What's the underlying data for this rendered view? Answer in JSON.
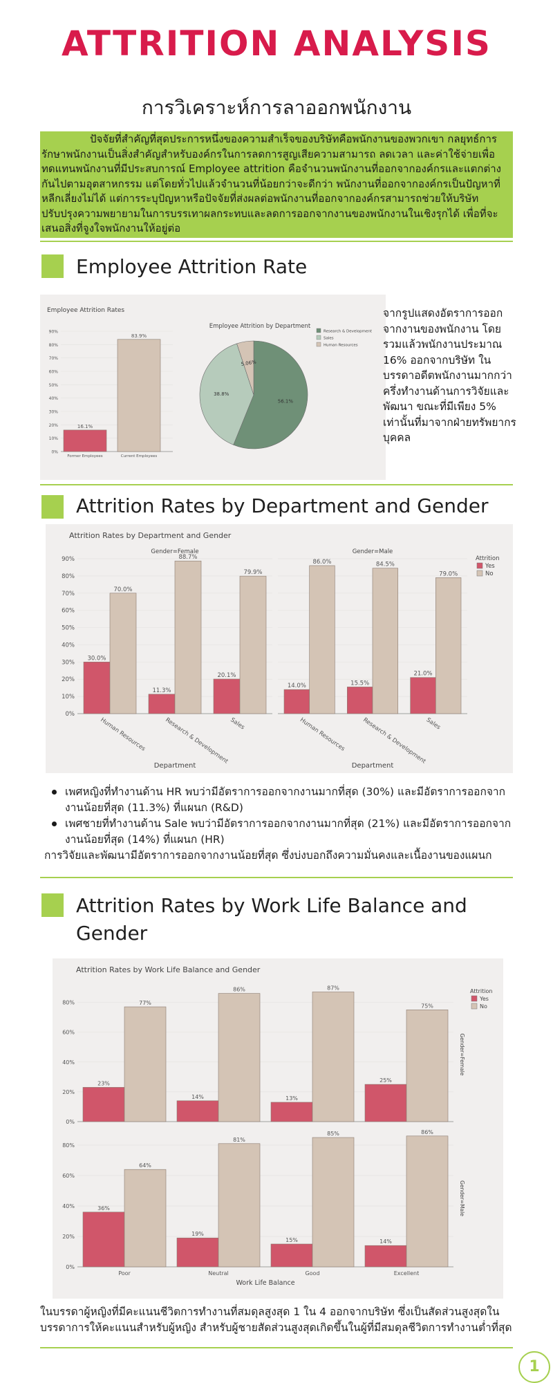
{
  "page": {
    "title": "ATTRITION ANALYSIS",
    "subtitle": "การวิเคราะห์การลาออกพนักงาน",
    "intro": "ปัจจัยที่สำคัญที่สุดประการหนึ่งของความสำเร็จของบริษัทคือพนักงานของพวกเขา กลยุทธ์การรักษาพนักงานเป็นสิ่งสำคัญสำหรับองค์กรในการลดการสูญเสียความสามารถ ลดเวลา และค่าใช้จ่ายเพื่อทดแทนพนักงานที่มีประสบการณ์ Employee attrition คือจำนวนพนักงานที่ออกจากองค์กรและแตกต่างกันไปตามอุตสาหกรรม แต่โดยทั่วไปแล้วจำนวนที่น้อยกว่าจะดีกว่า พนักงานที่ออกจากองค์กรเป็นปัญหาที่หลีกเลี่ยงไม่ได้ แต่การระบุปัญหาหรือปัจจัยที่ส่งผลต่อพนักงานที่ออกจากองค์กรสามารถช่วยให้บริษัทปรับปรุงความพยายามในการบรรเทาผลกระทบและลดการออกจากงานของพนักงานในเชิงรุกได้ เพื่อที่จะเสนอสิ่งที่จูงใจพนักงานให้อยู่ต่อ",
    "page_number": "1"
  },
  "sections": {
    "s1": {
      "heading": "Employee Attrition Rate",
      "side_text": "จากรูปแสดงอัตราการออกจากงานของพนักงาน โดยรวมแล้วพนักงานประมาณ 16% ออกจากบริษัท ในบรรดาอดีตพนักงานมากกว่าครึ่งทำงานด้านการวิจัยและพัฒนา ขณะที่มีเพียง 5% เท่านั้นที่มาจากฝ่ายทรัพยากรบุคคล"
    },
    "s2": {
      "heading": "Attrition Rates by Department and Gender",
      "bullets": [
        "เพศหญิงที่ทำงานด้าน HR พบว่ามีอัตราการออกจากงานมากที่สุด (30%) และมีอัตราการออกจากงานน้อยที่สุด (11.3%) ที่แผนก (R&D)",
        "เพศชายที่ทำงานด้าน Sale พบว่ามีอัตราการออกจากงานมากที่สุด (21%) และมีอัตราการออกจากงานน้อยที่สุด (14%) ที่แผนก (HR)"
      ],
      "summary": "การวิจัยและพัฒนามีอัตราการออกจากงานน้อยที่สุด ซึ่งบ่งบอกถึงความมั่นคงและเนื้องานของแผนก"
    },
    "s3": {
      "heading": "Attrition Rates by Work Life Balance and Gender",
      "text": "ในบรรดาผู้หญิงที่มีคะแนนชีวิตการทำงานที่สมดุลสูงสุด 1 ใน 4 ออกจากบริษัท ซึ่งเป็นสัดส่วนสูงสุดในบรรดาการให้คะแนนสำหรับผู้หญิง สำหรับผู้ชายสัดส่วนสูงสุดเกิดขึ้นในผู้ที่มีสมดุลชีวิตการทำงานต่ำที่สุด"
    }
  },
  "colors": {
    "accent": "#a6d04f",
    "title": "#d81b4b",
    "yes": "#d0566a",
    "no": "#d4c4b5",
    "pie_rd": "#6f9077",
    "pie_sales": "#b6cbbb",
    "pie_hr": "#d4c4b5"
  },
  "chart_data": [
    {
      "type": "bar",
      "title": "Employee Attrition Rates",
      "categories": [
        "Former Employees",
        "Current Employees"
      ],
      "values": [
        16.1,
        83.9
      ],
      "labels": [
        "16.1%",
        "83.9%"
      ],
      "yticks": [
        "0%",
        "10%",
        "20%",
        "30%",
        "40%",
        "50%",
        "60%",
        "70%",
        "80%",
        "90%"
      ],
      "ylim": [
        0,
        90
      ]
    },
    {
      "type": "pie",
      "title": "Employee Attrition by Department",
      "slices": [
        {
          "name": "Research & Development",
          "value": 56.1,
          "label": "56.1%"
        },
        {
          "name": "Sales",
          "value": 38.8,
          "label": "38.8%"
        },
        {
          "name": "Human Resources",
          "value": 5.06,
          "label": "5.06%"
        }
      ],
      "legend": [
        "Research & Development",
        "Sales",
        "Human Resources"
      ]
    },
    {
      "type": "bar",
      "title": "Attrition Rates by Department and Gender",
      "facets": [
        "Gender=Female",
        "Gender=Male"
      ],
      "categories": [
        "Human Resources",
        "Research & Development",
        "Sales"
      ],
      "xlabel": "Department",
      "legend_title": "Attrition",
      "series": [
        {
          "name": "Yes",
          "female": [
            30.0,
            11.3,
            20.1
          ],
          "male": [
            14.0,
            15.5,
            21.0
          ]
        },
        {
          "name": "No",
          "female": [
            70.0,
            88.7,
            79.9
          ],
          "male": [
            86.0,
            84.5,
            79.0
          ]
        }
      ],
      "labels": {
        "female_yes": [
          "30.0%",
          "11.3%",
          "20.1%"
        ],
        "female_no": [
          "70.0%",
          "88.7%",
          "79.9%"
        ],
        "male_yes": [
          "14.0%",
          "15.5%",
          "21.0%"
        ],
        "male_no": [
          "86.0%",
          "84.5%",
          "79.0%"
        ]
      },
      "yticks": [
        "0%",
        "10%",
        "20%",
        "30%",
        "40%",
        "50%",
        "60%",
        "70%",
        "80%",
        "90%"
      ],
      "ylim": [
        0,
        90
      ]
    },
    {
      "type": "bar",
      "title": "Attrition Rates by Work Life Balance and Gender",
      "facets": [
        "Gender=Female",
        "Gender=Male"
      ],
      "categories": [
        "Poor",
        "Neutral",
        "Good",
        "Excellent"
      ],
      "xlabel": "Work Life Balance",
      "legend_title": "Attrition",
      "series": [
        {
          "name": "Yes",
          "female": [
            23,
            14,
            13,
            25
          ],
          "male": [
            36,
            19,
            15,
            14
          ]
        },
        {
          "name": "No",
          "female": [
            77,
            86,
            87,
            75
          ],
          "male": [
            64,
            81,
            85,
            86
          ]
        }
      ],
      "labels": {
        "female_yes": [
          "23%",
          "14%",
          "13%",
          "25%"
        ],
        "female_no": [
          "77%",
          "86%",
          "87%",
          "75%"
        ],
        "male_yes": [
          "36%",
          "19%",
          "15%",
          "14%"
        ],
        "male_no": [
          "64%",
          "81%",
          "85%",
          "86%"
        ]
      },
      "yticks": [
        "0%",
        "20%",
        "40%",
        "60%",
        "80%"
      ],
      "ylim": [
        0,
        90
      ]
    }
  ]
}
